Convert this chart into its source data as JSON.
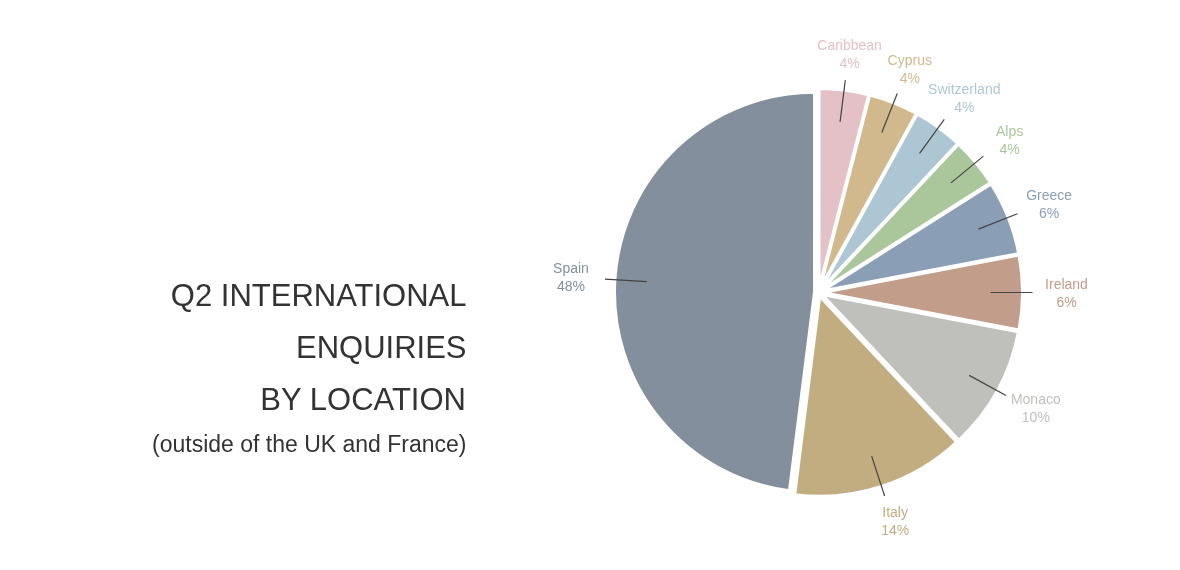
{
  "chart_data": {
    "type": "pie",
    "title": "Q2 INTERNATIONAL\nENQUIRIES\nBY LOCATION",
    "subtitle": "(outside of the UK and France)",
    "categories": [
      "Caribbean",
      "Cyprus",
      "Switzerland",
      "Alps",
      "Greece",
      "Ireland",
      "Monaco",
      "Italy",
      "Spain"
    ],
    "values": [
      4,
      4,
      4,
      4,
      6,
      6,
      10,
      14,
      48
    ],
    "value_labels": [
      "4%",
      "4%",
      "4%",
      "4%",
      "6%",
      "6%",
      "10%",
      "14%",
      "48%"
    ],
    "colors": [
      "#e4c1c6",
      "#d1b98d",
      "#adc6d4",
      "#a9c79a",
      "#8a9eb5",
      "#c19d8a",
      "#bfc0bb",
      "#c1ad80",
      "#848f9e"
    ]
  }
}
